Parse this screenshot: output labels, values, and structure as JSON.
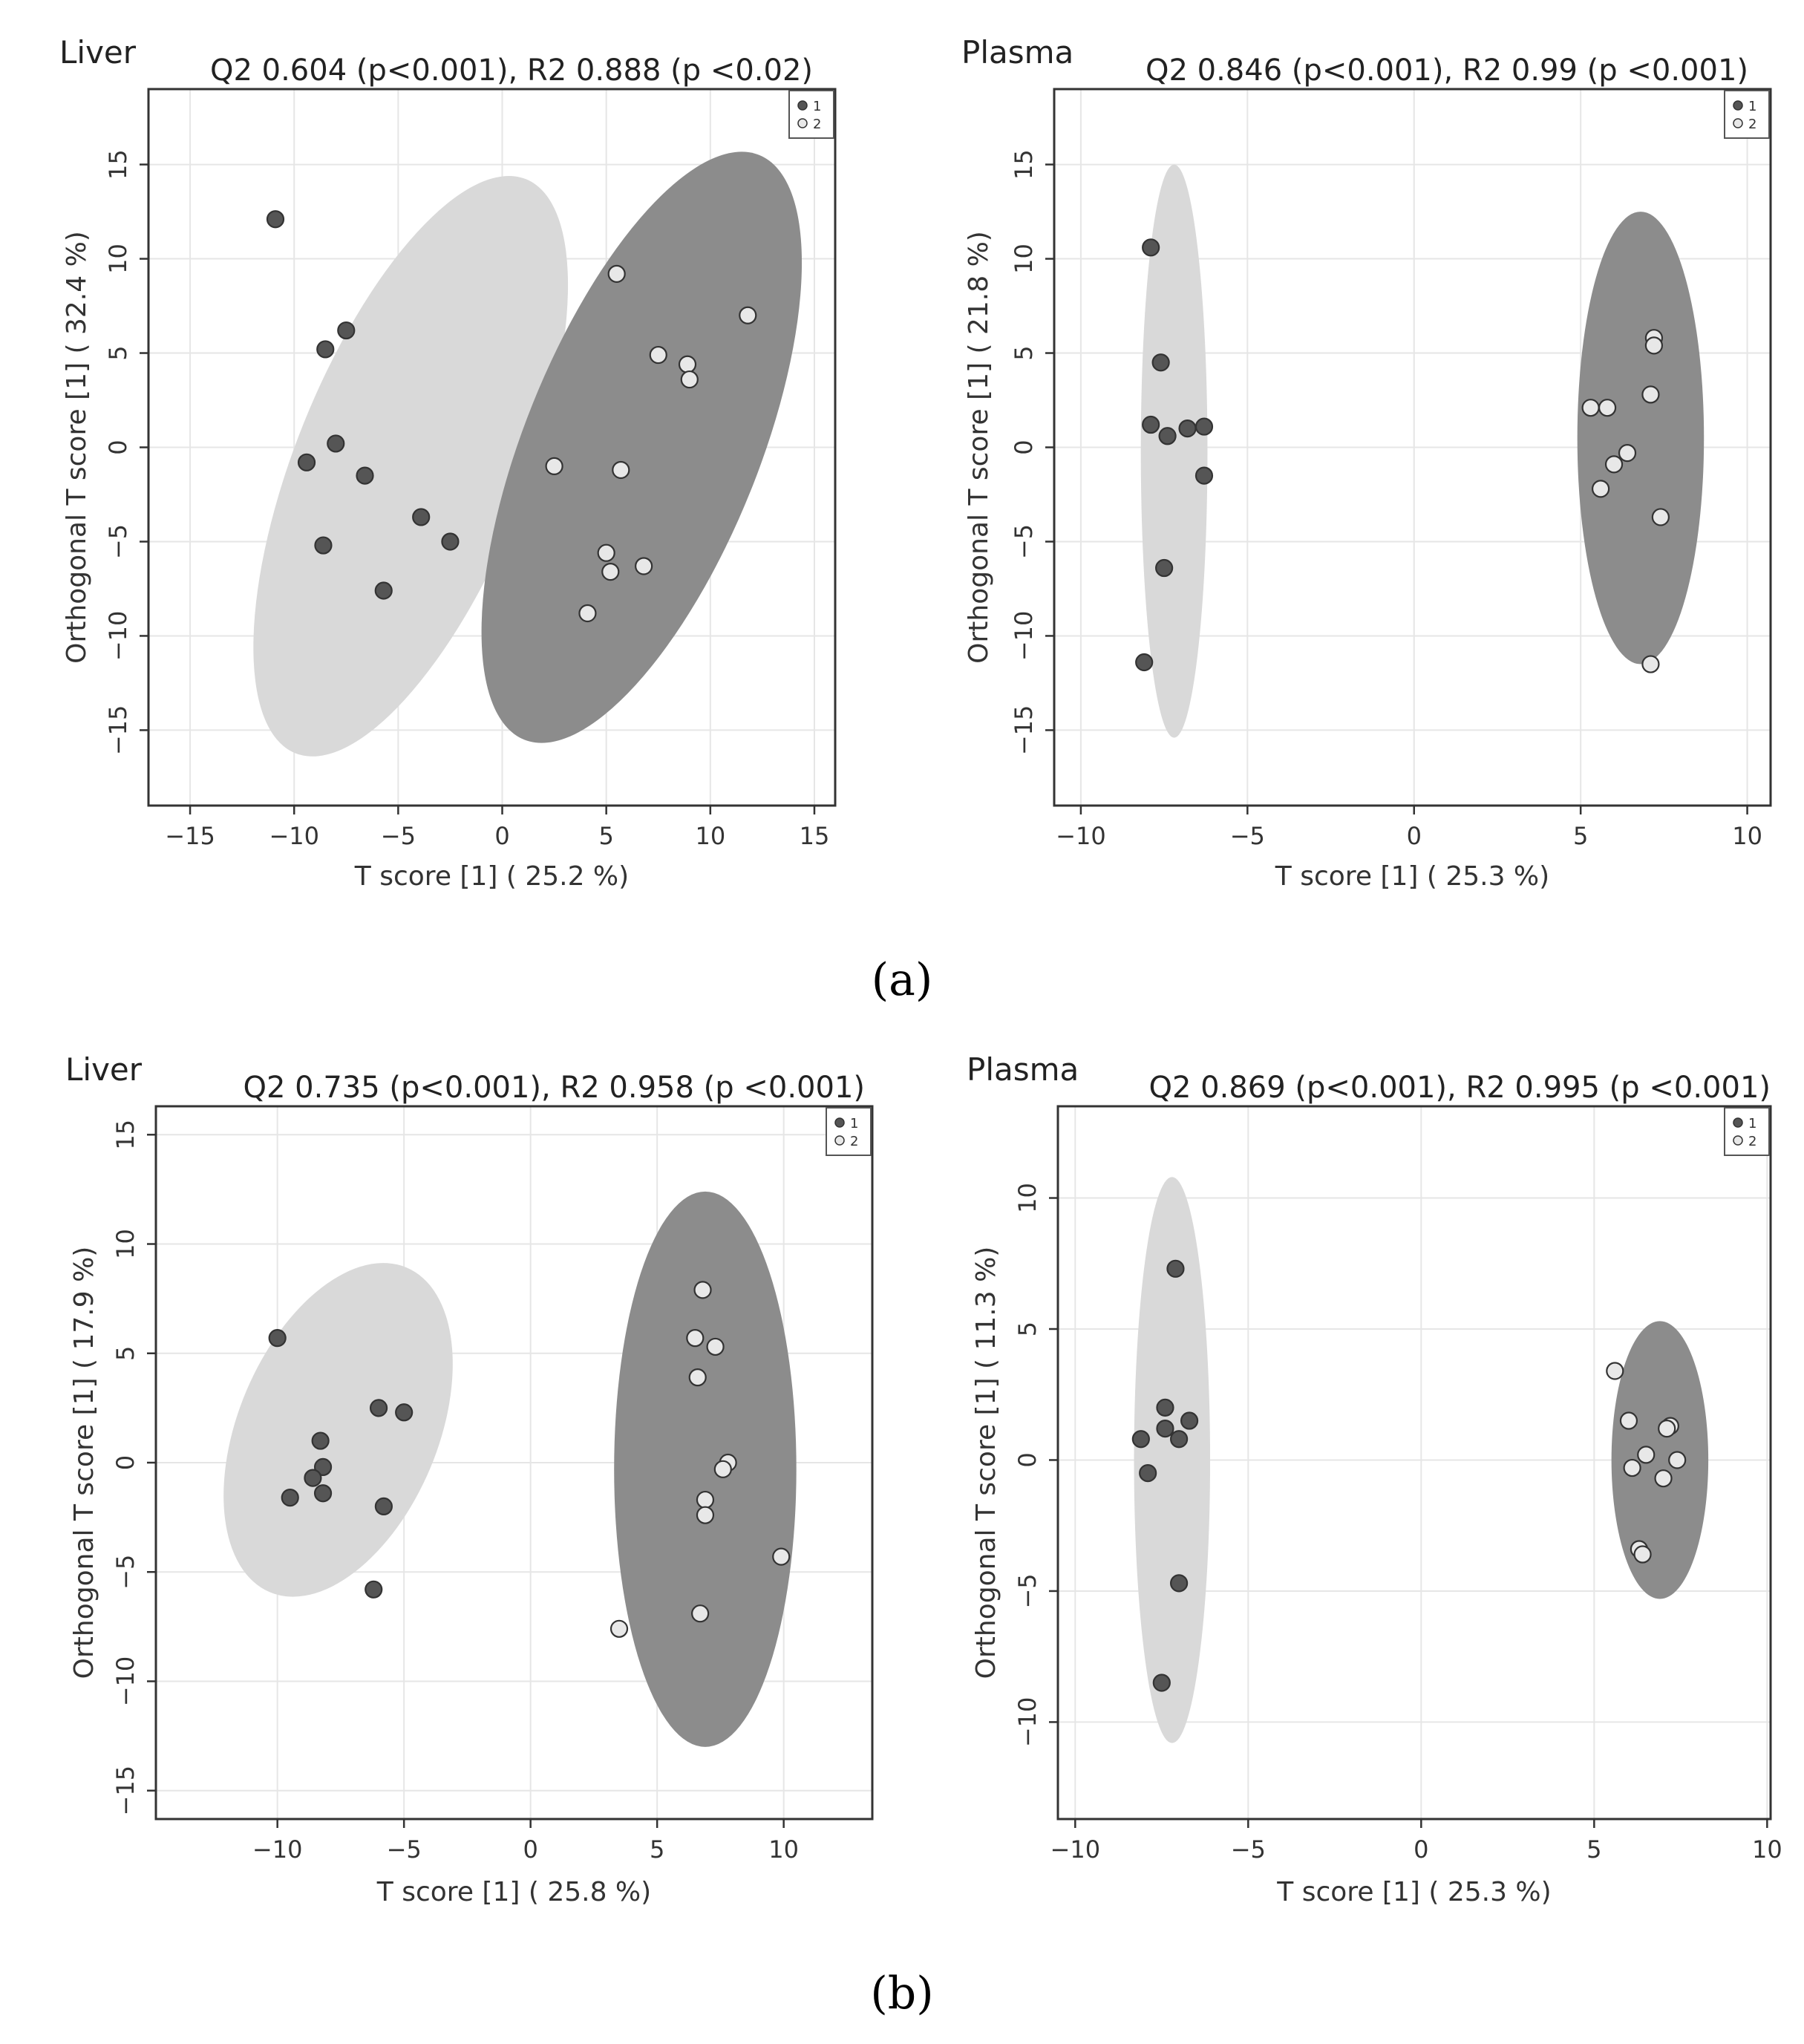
{
  "figure": {
    "panel_a_label": "(a)",
    "panel_b_label": "(b)"
  },
  "chart_data": [
    {
      "type": "scatter",
      "panel": "a",
      "name": "Liver",
      "title": "Q2 0.604 (p<0.001), R2 0.888 (p <0.02)",
      "xlabel": "T score [1] ( 25.2 %)",
      "ylabel": "Orthogonal T score [1] ( 32.4 %)",
      "xlim": [
        -17,
        16
      ],
      "ylim": [
        -19,
        19
      ],
      "xticks": [
        -15,
        -10,
        -5,
        0,
        5,
        10,
        15
      ],
      "yticks": [
        -15,
        -10,
        -5,
        0,
        5,
        10,
        15
      ],
      "xtick_labels": [
        "−15",
        "−10",
        "−5",
        "0",
        "5",
        "10",
        "15"
      ],
      "ytick_labels": [
        "−15",
        "−10",
        "−5",
        "0",
        "5",
        "10",
        "15"
      ],
      "grid": true,
      "legend": [
        "1",
        "2"
      ],
      "legend_position": "top-right",
      "series": [
        {
          "name": "1",
          "color": "#555555",
          "points": [
            [
              -10.9,
              12.1
            ],
            [
              -7.5,
              6.2
            ],
            [
              -8.5,
              5.2
            ],
            [
              -8.0,
              0.2
            ],
            [
              -9.4,
              -0.8
            ],
            [
              -6.6,
              -1.5
            ],
            [
              -3.9,
              -3.7
            ],
            [
              -2.5,
              -5.0
            ],
            [
              -8.6,
              -5.2
            ],
            [
              -5.7,
              -7.6
            ]
          ],
          "ellipse": {
            "cx": -4.4,
            "cy": -1.0,
            "rx": 16.2,
            "ry": 5.6,
            "angle": 70,
            "color": "#d9d9d9"
          }
        },
        {
          "name": "2",
          "color": "#e8e8e8",
          "points": [
            [
              5.5,
              9.2
            ],
            [
              11.8,
              7.0
            ],
            [
              7.5,
              4.9
            ],
            [
              8.9,
              4.4
            ],
            [
              9.0,
              3.6
            ],
            [
              2.5,
              -1.0
            ],
            [
              5.7,
              -1.2
            ],
            [
              5.0,
              -5.6
            ],
            [
              5.2,
              -6.6
            ],
            [
              6.8,
              -6.3
            ],
            [
              4.1,
              -8.8
            ]
          ],
          "ellipse": {
            "cx": 6.7,
            "cy": 0.0,
            "rx": 16.5,
            "ry": 5.7,
            "angle": 70,
            "color": "#8c8c8c"
          }
        }
      ]
    },
    {
      "type": "scatter",
      "panel": "a",
      "name": "Plasma",
      "title": "Q2 0.846 (p<0.001), R2 0.99 (p <0.001)",
      "xlabel": "T score [1] ( 25.3 %)",
      "ylabel": "Orthogonal T score [1] ( 21.8 %)",
      "xlim": [
        -10.8,
        10.7
      ],
      "ylim": [
        -19,
        19
      ],
      "xticks": [
        -10,
        -5,
        0,
        5,
        10
      ],
      "yticks": [
        -15,
        -10,
        -5,
        0,
        5,
        10,
        15
      ],
      "xtick_labels": [
        "−10",
        "−5",
        "0",
        "5",
        "10"
      ],
      "ytick_labels": [
        "−15",
        "−10",
        "−5",
        "0",
        "5",
        "10",
        "15"
      ],
      "grid": true,
      "legend": [
        "1",
        "2"
      ],
      "legend_position": "top-right",
      "series": [
        {
          "name": "1",
          "color": "#555555",
          "points": [
            [
              -7.9,
              10.6
            ],
            [
              -7.6,
              4.5
            ],
            [
              -7.9,
              1.2
            ],
            [
              -7.4,
              0.6
            ],
            [
              -6.8,
              1.0
            ],
            [
              -6.3,
              1.1
            ],
            [
              -6.3,
              -1.5
            ],
            [
              -7.5,
              -6.4
            ],
            [
              -8.1,
              -11.4
            ]
          ],
          "ellipse": {
            "cx": -7.2,
            "cy": -0.2,
            "rx": 1.0,
            "ry": 15.2,
            "angle": 0,
            "color": "#d9d9d9"
          }
        },
        {
          "name": "2",
          "color": "#e8e8e8",
          "points": [
            [
              7.2,
              5.8
            ],
            [
              7.2,
              5.4
            ],
            [
              7.1,
              2.8
            ],
            [
              5.3,
              2.1
            ],
            [
              5.8,
              2.1
            ],
            [
              6.4,
              -0.3
            ],
            [
              6.0,
              -0.9
            ],
            [
              5.6,
              -2.2
            ],
            [
              7.4,
              -3.7
            ],
            [
              7.1,
              -11.5
            ]
          ],
          "ellipse": {
            "cx": 6.8,
            "cy": 0.5,
            "rx": 1.9,
            "ry": 12.0,
            "angle": 0,
            "color": "#8c8c8c"
          }
        }
      ]
    },
    {
      "type": "scatter",
      "panel": "b",
      "name": "Liver",
      "title": "Q2 0.735 (p<0.001), R2 0.958 (p <0.001)",
      "xlabel": "T score [1] ( 25.8 %)",
      "ylabel": "Orthogonal T score [1] ( 17.9 %)",
      "xlim": [
        -14.8,
        13.5
      ],
      "ylim": [
        -16.3,
        16.3
      ],
      "xticks": [
        -10,
        -5,
        0,
        5,
        10
      ],
      "yticks": [
        -15,
        -10,
        -5,
        0,
        5,
        10,
        15
      ],
      "xtick_labels": [
        "−10",
        "−5",
        "0",
        "5",
        "10"
      ],
      "ytick_labels": [
        "−15",
        "−10",
        "−5",
        "0",
        "5",
        "10",
        "15"
      ],
      "grid": true,
      "legend": [
        "1",
        "2"
      ],
      "legend_position": "top-right",
      "series": [
        {
          "name": "1",
          "color": "#555555",
          "points": [
            [
              -10.0,
              5.7
            ],
            [
              -6.0,
              2.5
            ],
            [
              -5.0,
              2.3
            ],
            [
              -8.3,
              1.0
            ],
            [
              -8.2,
              -0.2
            ],
            [
              -8.6,
              -0.7
            ],
            [
              -9.5,
              -1.6
            ],
            [
              -8.2,
              -1.4
            ],
            [
              -5.8,
              -2.0
            ],
            [
              -6.2,
              -5.8
            ]
          ],
          "ellipse": {
            "cx": -7.6,
            "cy": 1.5,
            "rx": 7.9,
            "ry": 4.0,
            "angle": 70,
            "color": "#d9d9d9"
          }
        },
        {
          "name": "2",
          "color": "#e8e8e8",
          "points": [
            [
              6.8,
              7.9
            ],
            [
              6.5,
              5.7
            ],
            [
              7.3,
              5.3
            ],
            [
              6.6,
              3.9
            ],
            [
              7.8,
              0.0
            ],
            [
              7.6,
              -0.3
            ],
            [
              6.9,
              -1.7
            ],
            [
              6.9,
              -2.4
            ],
            [
              9.9,
              -4.3
            ],
            [
              3.5,
              -7.6
            ],
            [
              6.7,
              -6.9
            ]
          ],
          "ellipse": {
            "cx": 6.9,
            "cy": -0.3,
            "rx": 3.6,
            "ry": 12.7,
            "angle": 0,
            "color": "#8c8c8c"
          }
        }
      ]
    },
    {
      "type": "scatter",
      "panel": "b",
      "name": "Plasma",
      "title": "Q2 0.869 (p<0.001), R2 0.995 (p <0.001)",
      "xlabel": "T score [1] ( 25.3 %)",
      "ylabel": "Orthogonal T score [1] ( 11.3 %)",
      "xlim": [
        -10.5,
        10.1
      ],
      "ylim": [
        -13.7,
        13.5
      ],
      "xticks": [
        -10,
        -5,
        0,
        5,
        10
      ],
      "yticks": [
        -10,
        -5,
        0,
        5,
        10
      ],
      "xtick_labels": [
        "−10",
        "−5",
        "0",
        "5",
        "10"
      ],
      "ytick_labels": [
        "−10",
        "−5",
        "0",
        "5",
        "10"
      ],
      "grid": true,
      "legend": [
        "1",
        "2"
      ],
      "legend_position": "top-right",
      "series": [
        {
          "name": "1",
          "color": "#555555",
          "points": [
            [
              -7.1,
              7.3
            ],
            [
              -7.4,
              2.0
            ],
            [
              -7.4,
              1.2
            ],
            [
              -6.7,
              1.5
            ],
            [
              -7.0,
              0.8
            ],
            [
              -8.1,
              0.8
            ],
            [
              -7.9,
              -0.5
            ],
            [
              -7.0,
              -4.7
            ],
            [
              -7.5,
              -8.5
            ]
          ],
          "ellipse": {
            "cx": -7.2,
            "cy": 0.0,
            "rx": 1.1,
            "ry": 10.8,
            "angle": 0,
            "color": "#d9d9d9"
          }
        },
        {
          "name": "2",
          "color": "#e8e8e8",
          "points": [
            [
              5.6,
              3.4
            ],
            [
              6.0,
              1.5
            ],
            [
              7.2,
              1.3
            ],
            [
              7.1,
              1.2
            ],
            [
              6.5,
              0.2
            ],
            [
              7.4,
              0.0
            ],
            [
              6.1,
              -0.3
            ],
            [
              7.0,
              -0.7
            ],
            [
              6.3,
              -3.4
            ],
            [
              6.4,
              -3.6
            ]
          ],
          "ellipse": {
            "cx": 6.9,
            "cy": 0.0,
            "rx": 1.4,
            "ry": 5.3,
            "angle": 0,
            "color": "#8c8c8c"
          }
        }
      ]
    }
  ]
}
